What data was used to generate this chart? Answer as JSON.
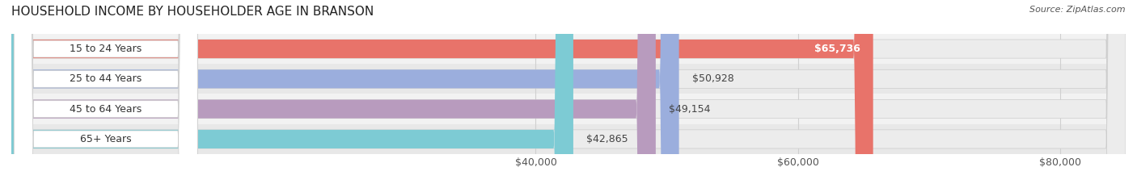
{
  "title": "HOUSEHOLD INCOME BY HOUSEHOLDER AGE IN BRANSON",
  "source": "Source: ZipAtlas.com",
  "categories": [
    "15 to 24 Years",
    "25 to 44 Years",
    "45 to 64 Years",
    "65+ Years"
  ],
  "values": [
    65736,
    50928,
    49154,
    42865
  ],
  "bar_colors": [
    "#E8736A",
    "#9BAEDD",
    "#B89BBE",
    "#7DCBD4"
  ],
  "row_bg_light": "#F2F2F2",
  "row_bg_dark": "#E8E8E8",
  "xlim_min": 0,
  "xlim_max": 85000,
  "xticks": [
    40000,
    60000,
    80000
  ],
  "xticklabels": [
    "$40,000",
    "$60,000",
    "$80,000"
  ],
  "value_labels": [
    "$65,736",
    "$50,928",
    "$49,154",
    "$42,865"
  ],
  "bar_height": 0.62,
  "title_fontsize": 11,
  "source_fontsize": 8,
  "label_fontsize": 9,
  "tick_fontsize": 9,
  "background_color": "#FFFFFF",
  "grid_color": "#D0D0D0",
  "label_pill_color": "#FFFFFF",
  "label_text_color": "#333333"
}
